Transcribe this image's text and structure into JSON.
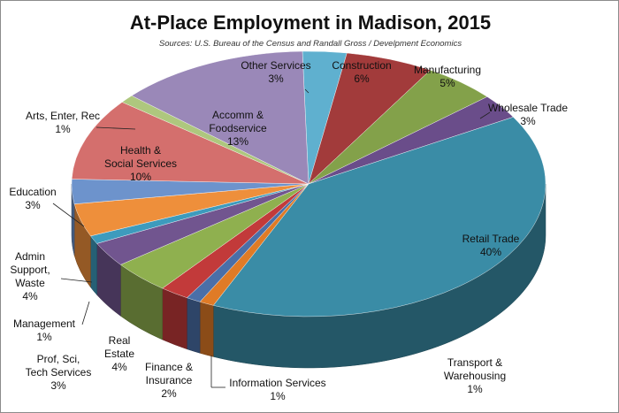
{
  "chart_data": {
    "type": "pie",
    "title": "At-Place Employment in Madison, 2015",
    "subtitle": "Sources: U.S. Bureau of the Census and Randall  Gross / Develpment Economics",
    "slices": [
      {
        "label": "Other Services",
        "pct_label": "3%",
        "value": 3,
        "color": "#5fb0cf"
      },
      {
        "label": "Construction",
        "pct_label": "6%",
        "value": 6,
        "color": "#a23b3b"
      },
      {
        "label": "Manufacturing",
        "pct_label": "5%",
        "value": 5,
        "color": "#83a14a"
      },
      {
        "label": "Wholesale Trade",
        "pct_label": "3%",
        "value": 3,
        "color": "#6a4d8a"
      },
      {
        "label": "Retail Trade",
        "pct_label": "40%",
        "value": 40,
        "color": "#3a8ca6"
      },
      {
        "label": "Transport & Warehousing",
        "pct_label": "1%",
        "value": 1,
        "color": "#e07b26"
      },
      {
        "label": "Information Services",
        "pct_label": "1%",
        "value": 1,
        "color": "#4a6fa8"
      },
      {
        "label": "Finance & Insurance",
        "pct_label": "2%",
        "value": 2,
        "color": "#c23a3a"
      },
      {
        "label": "Real Estate",
        "pct_label": "4%",
        "value": 4,
        "color": "#8fb04f"
      },
      {
        "label": "Prof, Sci, Tech Services",
        "pct_label": "3%",
        "value": 3,
        "color": "#71558f"
      },
      {
        "label": "Management",
        "pct_label": "1%",
        "value": 1,
        "color": "#3d9bbd"
      },
      {
        "label": "Admin Support, Waste",
        "pct_label": "4%",
        "value": 4,
        "color": "#ee8f3b"
      },
      {
        "label": "Education",
        "pct_label": "3%",
        "value": 3,
        "color": "#6d93cc"
      },
      {
        "label": "Health & Social Services",
        "pct_label": "10%",
        "value": 10,
        "color": "#d46f6d"
      },
      {
        "label": "Arts, Enter, Rec",
        "pct_label": "1%",
        "value": 1,
        "color": "#aec77e"
      },
      {
        "label": "Accomm & Foodservice",
        "pct_label": "13%",
        "value": 13,
        "color": "#9a88b8"
      }
    ]
  }
}
